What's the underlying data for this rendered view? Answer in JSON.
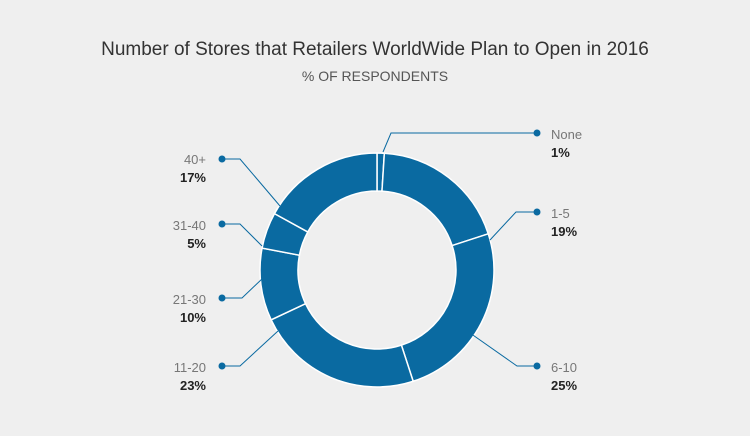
{
  "chart_data": {
    "type": "pie",
    "title": "Number of Stores that Retailers WorldWide Plan to Open in 2016",
    "subtitle": "% OF RESPONDENTS",
    "categories": [
      "None",
      "1-5",
      "6-10",
      "11-20",
      "21-30",
      "31-40",
      "40+"
    ],
    "values": [
      1,
      19,
      25,
      23,
      10,
      5,
      17
    ],
    "value_labels": [
      "1%",
      "19%",
      "25%",
      "23%",
      "10%",
      "5%",
      "17%"
    ],
    "unit": "%",
    "style": "donut",
    "legend": "none",
    "colors": {
      "slice": "#0a6aa1",
      "separator": "#ffffff",
      "leader": "#0a6aa1",
      "background": "#efefef"
    }
  }
}
